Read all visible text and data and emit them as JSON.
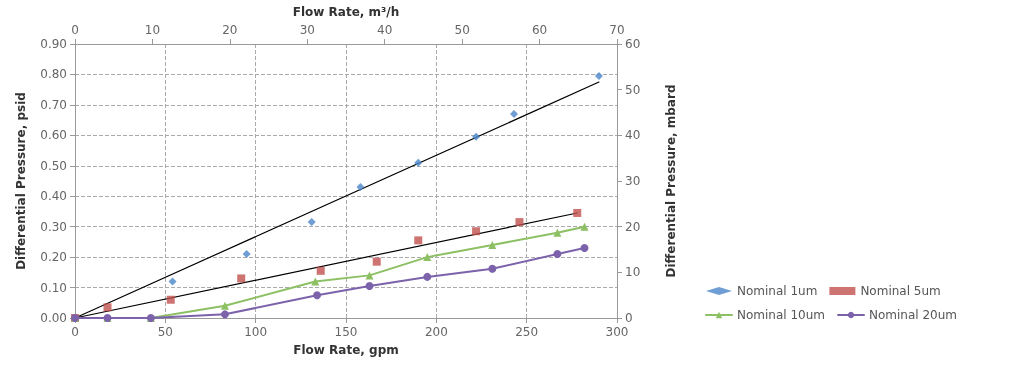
{
  "chart_data": {
    "type": "scatter",
    "xlabel": "Flow Rate, gpm",
    "ylabel": "Differential Pressure, psid",
    "x2label": "Flow Rate, m³/h",
    "y2label": "Differential Pressure, mbard",
    "xlim": [
      0,
      300
    ],
    "xticks": [
      0,
      50,
      100,
      150,
      200,
      250,
      300
    ],
    "ylim": [
      0,
      0.9
    ],
    "yticks": [
      {
        "value": 0,
        "label": "0.00"
      },
      {
        "value": 0.1,
        "label": "0.10"
      },
      {
        "value": 0.2,
        "label": "0.20"
      },
      {
        "value": 0.3,
        "label": "0.30"
      },
      {
        "value": 0.4,
        "label": "0.40"
      },
      {
        "value": 0.5,
        "label": "0.50"
      },
      {
        "value": 0.6,
        "label": "0.60"
      },
      {
        "value": 0.7,
        "label": "0.70"
      },
      {
        "value": 0.8,
        "label": "0.80"
      },
      {
        "value": 0.9,
        "label": "0.90"
      }
    ],
    "x2lim": [
      0,
      70
    ],
    "x2ticks": [
      0,
      10,
      20,
      30,
      40,
      50,
      60,
      70
    ],
    "y2lim": [
      0,
      60
    ],
    "y2ticks": [
      0,
      10,
      20,
      30,
      40,
      50,
      60
    ],
    "grid": true,
    "legend": "right",
    "line_style": "solid",
    "series": [
      {
        "name": "Nominal 1um",
        "marker": "diamond",
        "color": "#4a86c8",
        "x": [
          54,
          95,
          131,
          158,
          190,
          222,
          243,
          290
        ],
        "values": [
          0.12,
          0.21,
          0.315,
          0.43,
          0.51,
          0.595,
          0.67,
          0.795
        ]
      },
      {
        "name": "Nominal 5um",
        "marker": "square",
        "color": "#c0504d",
        "x": [
          0,
          18,
          53,
          92,
          136,
          167,
          190,
          222,
          246,
          278
        ],
        "values": [
          0,
          0.035,
          0.06,
          0.13,
          0.155,
          0.185,
          0.255,
          0.285,
          0.315,
          0.345
        ]
      },
      {
        "name": "Nominal 10um",
        "type": "line",
        "marker": "triangle",
        "color": "#8cc063",
        "x": [
          0,
          18,
          42,
          83,
          133,
          163,
          195,
          231,
          267,
          282
        ],
        "values": [
          0,
          0,
          0,
          0.04,
          0.12,
          0.14,
          0.2,
          0.24,
          0.28,
          0.3
        ]
      },
      {
        "name": "Nominal 20um",
        "type": "line",
        "marker": "circle",
        "color": "#7b62ab",
        "x": [
          0,
          18,
          42,
          83,
          134,
          163,
          195,
          231,
          267,
          282
        ],
        "values": [
          0,
          0,
          0,
          0.012,
          0.075,
          0.105,
          0.135,
          0.162,
          0.21,
          0.23
        ]
      },
      {
        "type": "line",
        "marker": "none",
        "color": "#000000",
        "x": [
          0,
          290
        ],
        "values": [
          0,
          0.775
        ]
      },
      {
        "type": "line",
        "marker": "none",
        "color": "#000000",
        "x": [
          0,
          278
        ],
        "values": [
          0,
          0.345
        ]
      }
    ]
  }
}
